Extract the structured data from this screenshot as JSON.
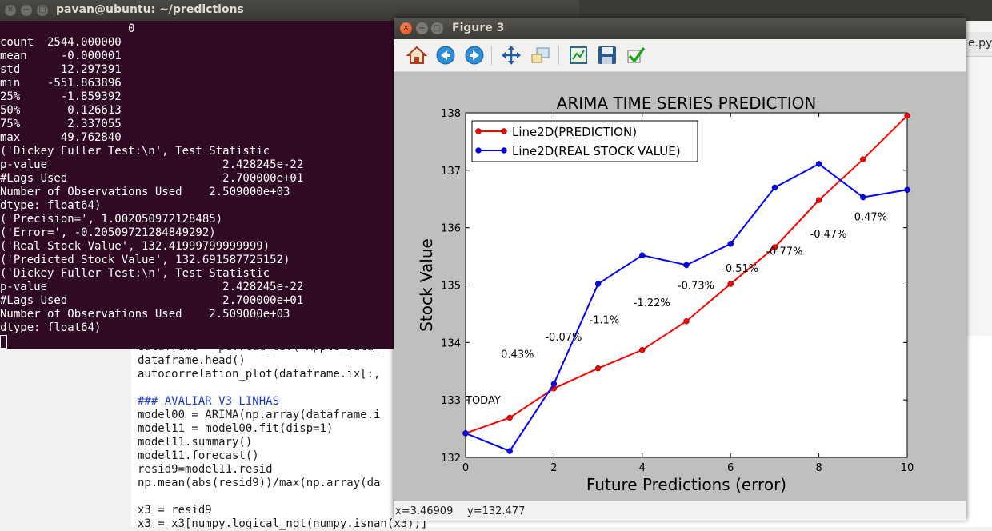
{
  "terminal": {
    "title": "pavan@ubuntu: ~/predictions",
    "lines": [
      "                   0",
      "count  2544.000000",
      "mean     -0.000001",
      "std      12.297391",
      "min    -551.863896",
      "25%      -1.859392",
      "50%       0.126613",
      "75%       2.337055",
      "max      49.762840",
      "('Dickey Fuller Test:\\n', Test Statistic",
      "p-value                          2.428245e-22",
      "#Lags Used                       2.700000e+01",
      "Number of Observations Used    2.509000e+03",
      "dtype: float64)",
      "('Precision=', 1.002050972128485)",
      "('Error=', -0.20509721284849292)",
      "('Real Stock Value', 132.41999799999999)",
      "('Predicted Stock Value', 132.691587725152)",
      "('Dickey Fuller Test:\\n', Test Statistic",
      "p-value                          2.428245e-22",
      "#Lags Used                       2.700000e+01",
      "Number of Observations Used    2.509000e+03",
      "dtype: float64)"
    ]
  },
  "editor": {
    "lines": [
      {
        "text": "dataframe = pd.read_csv('Apple_Data_",
        "kind": "code"
      },
      {
        "text": "dataframe.head()",
        "kind": "code"
      },
      {
        "text": "autocorrelation_plot(dataframe.ix[:,",
        "kind": "code"
      },
      {
        "text": "",
        "kind": "code"
      },
      {
        "text": "### AVALIAR V3 LINHAS",
        "kind": "comment"
      },
      {
        "text": "model00 = ARIMA(np.array(dataframe.i",
        "kind": "code"
      },
      {
        "text": "model11 = model00.fit(disp=1)",
        "kind": "code"
      },
      {
        "text": "model11.summary()",
        "kind": "code"
      },
      {
        "text": "model11.forecast()",
        "kind": "code"
      },
      {
        "text": "resid9=model11.resid",
        "kind": "code"
      },
      {
        "text": "np.mean(abs(resid9))/max(np.array(da",
        "kind": "code"
      },
      {
        "text": "",
        "kind": "code"
      },
      {
        "text": "x3 = resid9",
        "kind": "code"
      },
      {
        "text": "x3 = x3[numpy.logical_not(numpy.isnan(x3))]",
        "kind": "code"
      }
    ],
    "right_tab": "e.py"
  },
  "figure": {
    "title": "Figure 3",
    "status_x": "x=3.46909",
    "status_y": "y=132.477",
    "toolbar": {
      "home": "home-icon",
      "back": "back-arrow-icon",
      "forward": "forward-arrow-icon",
      "pan": "pan-icon",
      "zoom": "zoom-icon",
      "subplots": "subplots-icon",
      "save": "save-icon",
      "check": "check-icon"
    }
  },
  "chart_data": {
    "type": "line",
    "title": "ARIMA TIME SERIES PREDICTION",
    "xlabel": "Future Predictions (error)",
    "ylabel": "Stock Value",
    "xlim": [
      0,
      10
    ],
    "ylim": [
      132,
      138
    ],
    "xticks": [
      0,
      2,
      4,
      6,
      8,
      10
    ],
    "yticks": [
      132,
      133,
      134,
      135,
      136,
      137,
      138
    ],
    "legend_position": "top-left",
    "grid": false,
    "series": [
      {
        "name": "Line2D(PREDICTION)",
        "color": "#ff0000",
        "x": [
          0,
          1,
          2,
          3,
          4,
          5,
          6,
          7,
          8,
          9,
          10
        ],
        "y": [
          132.42,
          132.69,
          133.2,
          133.55,
          133.87,
          134.37,
          135.02,
          135.66,
          136.48,
          137.19,
          137.95
        ]
      },
      {
        "name": "Line2D(REAL STOCK VALUE)",
        "color": "#0000ff",
        "x": [
          0,
          1,
          2,
          3,
          4,
          5,
          6,
          7,
          8,
          9,
          10
        ],
        "y": [
          132.42,
          132.11,
          133.28,
          135.02,
          135.52,
          135.35,
          135.72,
          136.7,
          137.11,
          136.53,
          136.66
        ]
      }
    ],
    "annotations": [
      {
        "text": "TODAY",
        "x": 0,
        "y": 133
      },
      {
        "text": "0.43%",
        "x": 0.8,
        "y": 133.8
      },
      {
        "text": "-0.07%",
        "x": 1.8,
        "y": 134.1
      },
      {
        "text": "-1.1%",
        "x": 2.8,
        "y": 134.4
      },
      {
        "text": "-1.22%",
        "x": 3.8,
        "y": 134.7
      },
      {
        "text": "-0.73%",
        "x": 4.8,
        "y": 135
      },
      {
        "text": "-0.51%",
        "x": 5.8,
        "y": 135.3
      },
      {
        "text": "-0.77%",
        "x": 6.8,
        "y": 135.6
      },
      {
        "text": "-0.47%",
        "x": 7.8,
        "y": 135.9
      },
      {
        "text": "0.47%",
        "x": 8.8,
        "y": 136.2
      }
    ]
  }
}
